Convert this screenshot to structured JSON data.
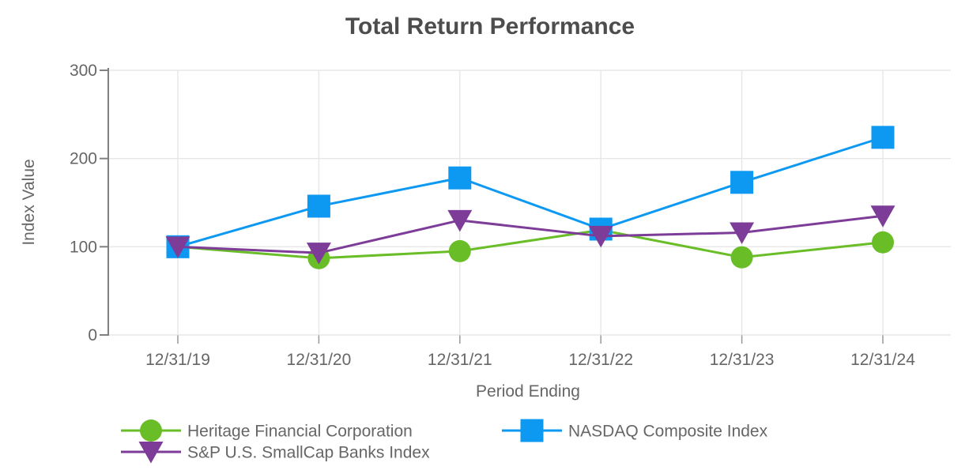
{
  "chart_data": {
    "type": "line",
    "title": "Total Return Performance",
    "xlabel": "Period Ending",
    "ylabel": "Index Value",
    "categories": [
      "12/31/19",
      "12/31/20",
      "12/31/21",
      "12/31/22",
      "12/31/23",
      "12/31/24"
    ],
    "ylim": [
      0,
      300
    ],
    "yticks": [
      0,
      100,
      200,
      300
    ],
    "grid": true,
    "legend_position": "bottom-left-two-column",
    "series": [
      {
        "name": "Heritage Financial Corporation",
        "marker": "circle-icon",
        "color": "#69be28",
        "values": [
          100,
          87,
          95,
          119,
          88,
          105
        ]
      },
      {
        "name": "NASDAQ Composite Index",
        "marker": "square-icon",
        "color": "#0d99f2",
        "values": [
          100,
          146,
          178,
          120,
          173,
          224
        ]
      },
      {
        "name": "S&P U.S. SmallCap Banks Index",
        "marker": "triangle-down-icon",
        "color": "#7d3c98",
        "values": [
          100,
          93,
          130,
          112,
          116,
          135
        ]
      }
    ],
    "colors": {
      "title": "#4d4d4d",
      "labels": "#666666",
      "grid": "#e7e7e7",
      "axis": "#808080",
      "tick": "#999999"
    }
  }
}
